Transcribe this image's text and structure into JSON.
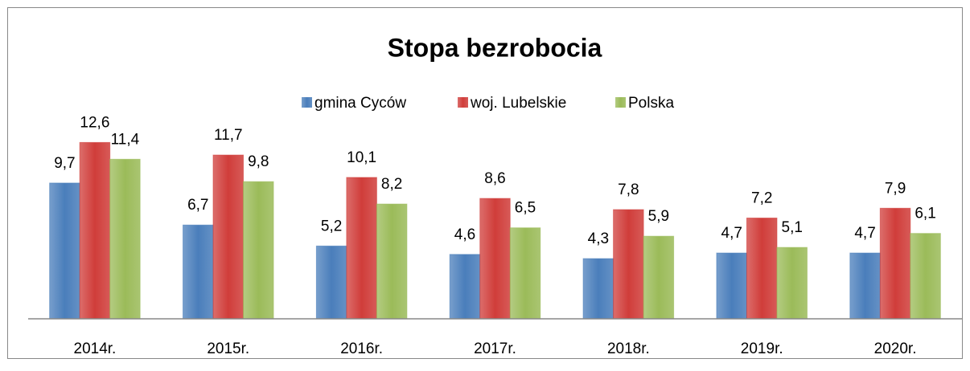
{
  "chart_data": {
    "type": "bar",
    "title": "Stopa bezrobocia",
    "categories": [
      "2014r.",
      "2015r.",
      "2016r.",
      "2017r.",
      "2018r.",
      "2019r.",
      "2020r."
    ],
    "series": [
      {
        "name": "gmina Cyców",
        "color": "#4a7ebb",
        "values": [
          9.7,
          6.7,
          5.2,
          4.6,
          4.3,
          4.7,
          4.7
        ],
        "value_labels": [
          "9,7",
          "6,7",
          "5,2",
          "4,6",
          "4,3",
          "4,7",
          "4,7"
        ]
      },
      {
        "name": "woj. Lubelskie",
        "color": "#d03d3a",
        "values": [
          12.6,
          11.7,
          10.1,
          8.6,
          7.8,
          7.2,
          7.9
        ],
        "value_labels": [
          "12,6",
          "11,7",
          "10,1",
          "8,6",
          "7,8",
          "7,2",
          "7,9"
        ]
      },
      {
        "name": "Polska",
        "color": "#9bbb59",
        "values": [
          11.4,
          9.8,
          8.2,
          6.5,
          5.9,
          5.1,
          6.1
        ],
        "value_labels": [
          "11,4",
          "9,8",
          "8,2",
          "6,5",
          "5,9",
          "5,1",
          "6,1"
        ]
      }
    ],
    "ylim": [
      0,
      14
    ],
    "legend": "top"
  }
}
